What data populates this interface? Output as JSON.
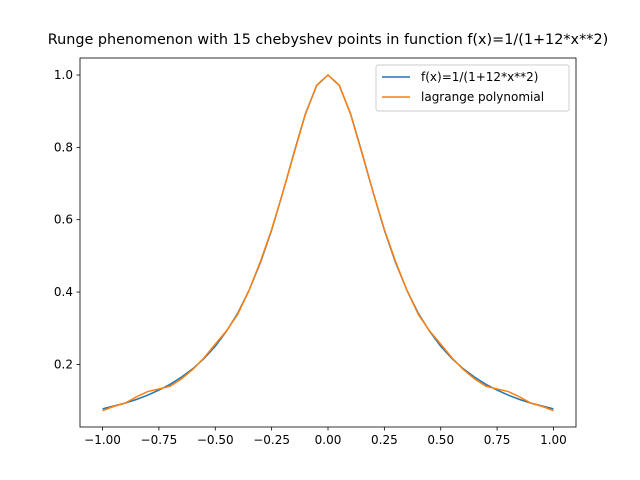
{
  "chart_data": {
    "type": "line",
    "title": "Runge phenomenon with 15 chebyshev points in function f(x)=1/(1+12*x**2)",
    "x": [
      -1,
      -0.95,
      -0.9,
      -0.85,
      -0.8,
      -0.75,
      -0.7,
      -0.65,
      -0.6,
      -0.55,
      -0.5,
      -0.45,
      -0.4,
      -0.35,
      -0.3,
      -0.25,
      -0.2,
      -0.15,
      -0.1,
      -0.05,
      0,
      0.05,
      0.1,
      0.15,
      0.2,
      0.25,
      0.3,
      0.35,
      0.4,
      0.45,
      0.5,
      0.55,
      0.6,
      0.65,
      0.7,
      0.75,
      0.8,
      0.85,
      0.9,
      0.95,
      1
    ],
    "series": [
      {
        "name": "f(x)=1/(1+12*x**2)",
        "color": "#1f77b4",
        "values": [
          0.077,
          0.085,
          0.093,
          0.103,
          0.115,
          0.129,
          0.145,
          0.165,
          0.188,
          0.216,
          0.25,
          0.292,
          0.342,
          0.405,
          0.481,
          0.571,
          0.676,
          0.787,
          0.893,
          0.971,
          1,
          0.971,
          0.893,
          0.787,
          0.676,
          0.571,
          0.481,
          0.405,
          0.342,
          0.292,
          0.25,
          0.216,
          0.188,
          0.165,
          0.145,
          0.129,
          0.115,
          0.103,
          0.093,
          0.085,
          0.077
        ]
      },
      {
        "name": "lagrange polynomial",
        "color": "#ff7f0e",
        "values": [
          0.072,
          0.084,
          0.093,
          0.11,
          0.125,
          0.132,
          0.14,
          0.16,
          0.186,
          0.218,
          0.256,
          0.293,
          0.339,
          0.405,
          0.484,
          0.573,
          0.676,
          0.785,
          0.892,
          0.972,
          1,
          0.972,
          0.892,
          0.785,
          0.676,
          0.573,
          0.484,
          0.405,
          0.339,
          0.293,
          0.256,
          0.218,
          0.186,
          0.16,
          0.14,
          0.132,
          0.125,
          0.11,
          0.093,
          0.084,
          0.072
        ]
      }
    ],
    "xlim": [
      -1.1,
      1.1
    ],
    "ylim": [
      0.027,
      1.047
    ],
    "xticks": [
      {
        "value": -1,
        "label": "−1.00"
      },
      {
        "value": -0.75,
        "label": "−0.75"
      },
      {
        "value": -0.5,
        "label": "−0.50"
      },
      {
        "value": -0.25,
        "label": "−0.25"
      },
      {
        "value": 0,
        "label": "0.00"
      },
      {
        "value": 0.25,
        "label": "0.25"
      },
      {
        "value": 0.5,
        "label": "0.50"
      },
      {
        "value": 0.75,
        "label": "0.75"
      },
      {
        "value": 1,
        "label": "1.00"
      }
    ],
    "yticks": [
      0.2,
      0.4,
      0.6,
      0.8,
      {
        "value": 1,
        "label": "1.0"
      }
    ],
    "legend": "upper right"
  }
}
